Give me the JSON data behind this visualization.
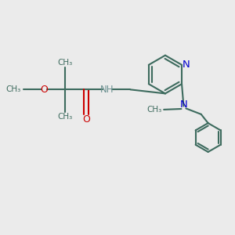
{
  "bg_color": "#ebebeb",
  "bond_color": "#3d6b5e",
  "N_color": "#0000cd",
  "O_color": "#cc0000",
  "NH_color": "#6b9090",
  "line_width": 1.5,
  "figsize": [
    3.0,
    3.0
  ],
  "dpi": 100,
  "xlim": [
    0,
    10
  ],
  "ylim": [
    0,
    10
  ]
}
